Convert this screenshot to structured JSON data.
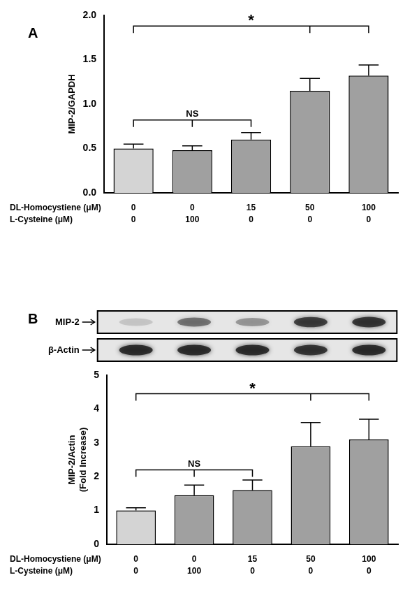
{
  "chart_data": [
    {
      "type": "bar",
      "title": "A",
      "y_label": "MIP-2/GAPDH",
      "x_rows": [
        {
          "label": "DL-Homocystiene (μM)",
          "values": [
            0,
            0,
            15,
            50,
            100
          ]
        },
        {
          "label": "L-Cysteine (μM)",
          "values": [
            0,
            100,
            0,
            0,
            0
          ]
        }
      ],
      "values": [
        0.5,
        0.48,
        0.6,
        1.15,
        1.32
      ],
      "errors": [
        0.05,
        0.05,
        0.08,
        0.14,
        0.12
      ],
      "colors": [
        "#d4d4d4",
        "#a0a0a0",
        "#a0a0a0",
        "#a0a0a0",
        "#a0a0a0"
      ],
      "ylim": [
        0,
        2
      ],
      "yticks": [
        {
          "value": 0,
          "label": "0.0"
        },
        {
          "value": 0.5,
          "label": "0.5"
        },
        {
          "value": 1,
          "label": "1.0"
        },
        {
          "value": 1.5,
          "label": "1.5"
        },
        {
          "value": 2,
          "label": "2.0"
        }
      ],
      "grid": false,
      "annotations": [
        {
          "text": "*",
          "from": 0,
          "to": [
            3,
            4
          ],
          "y": 1.88
        },
        {
          "text": "NS",
          "from": 0,
          "to": [
            1,
            2
          ],
          "y": 0.82
        }
      ]
    },
    {
      "type": "bar",
      "title": "B",
      "y_label": [
        "MIP-2/Actin",
        "(Fold Increase)"
      ],
      "blot": [
        {
          "label": "MIP-2",
          "intensity": [
            0.15,
            0.5,
            0.35,
            0.75,
            0.8
          ]
        },
        {
          "label": "β-Actin",
          "intensity": [
            0.85,
            0.85,
            0.85,
            0.8,
            0.85
          ]
        }
      ],
      "x_rows": [
        {
          "label": "DL-Homocystiene (μM)",
          "values": [
            0,
            0,
            15,
            50,
            100
          ]
        },
        {
          "label": "L-Cysteine (μM)",
          "values": [
            0,
            100,
            0,
            0,
            0
          ]
        }
      ],
      "values": [
        1.0,
        1.45,
        1.6,
        2.9,
        3.1
      ],
      "errors": [
        0.08,
        0.3,
        0.3,
        0.7,
        0.6
      ],
      "colors": [
        "#d4d4d4",
        "#a0a0a0",
        "#a0a0a0",
        "#a0a0a0",
        "#a0a0a0"
      ],
      "ylim": [
        0,
        5
      ],
      "yticks": [
        0,
        1,
        2,
        3,
        4,
        5
      ],
      "grid": false,
      "annotations": [
        {
          "text": "*",
          "from": 0,
          "to": [
            3,
            4
          ],
          "y": 4.45
        },
        {
          "text": "NS",
          "from": 0,
          "to": [
            1,
            2
          ],
          "y": 2.2
        }
      ]
    }
  ]
}
